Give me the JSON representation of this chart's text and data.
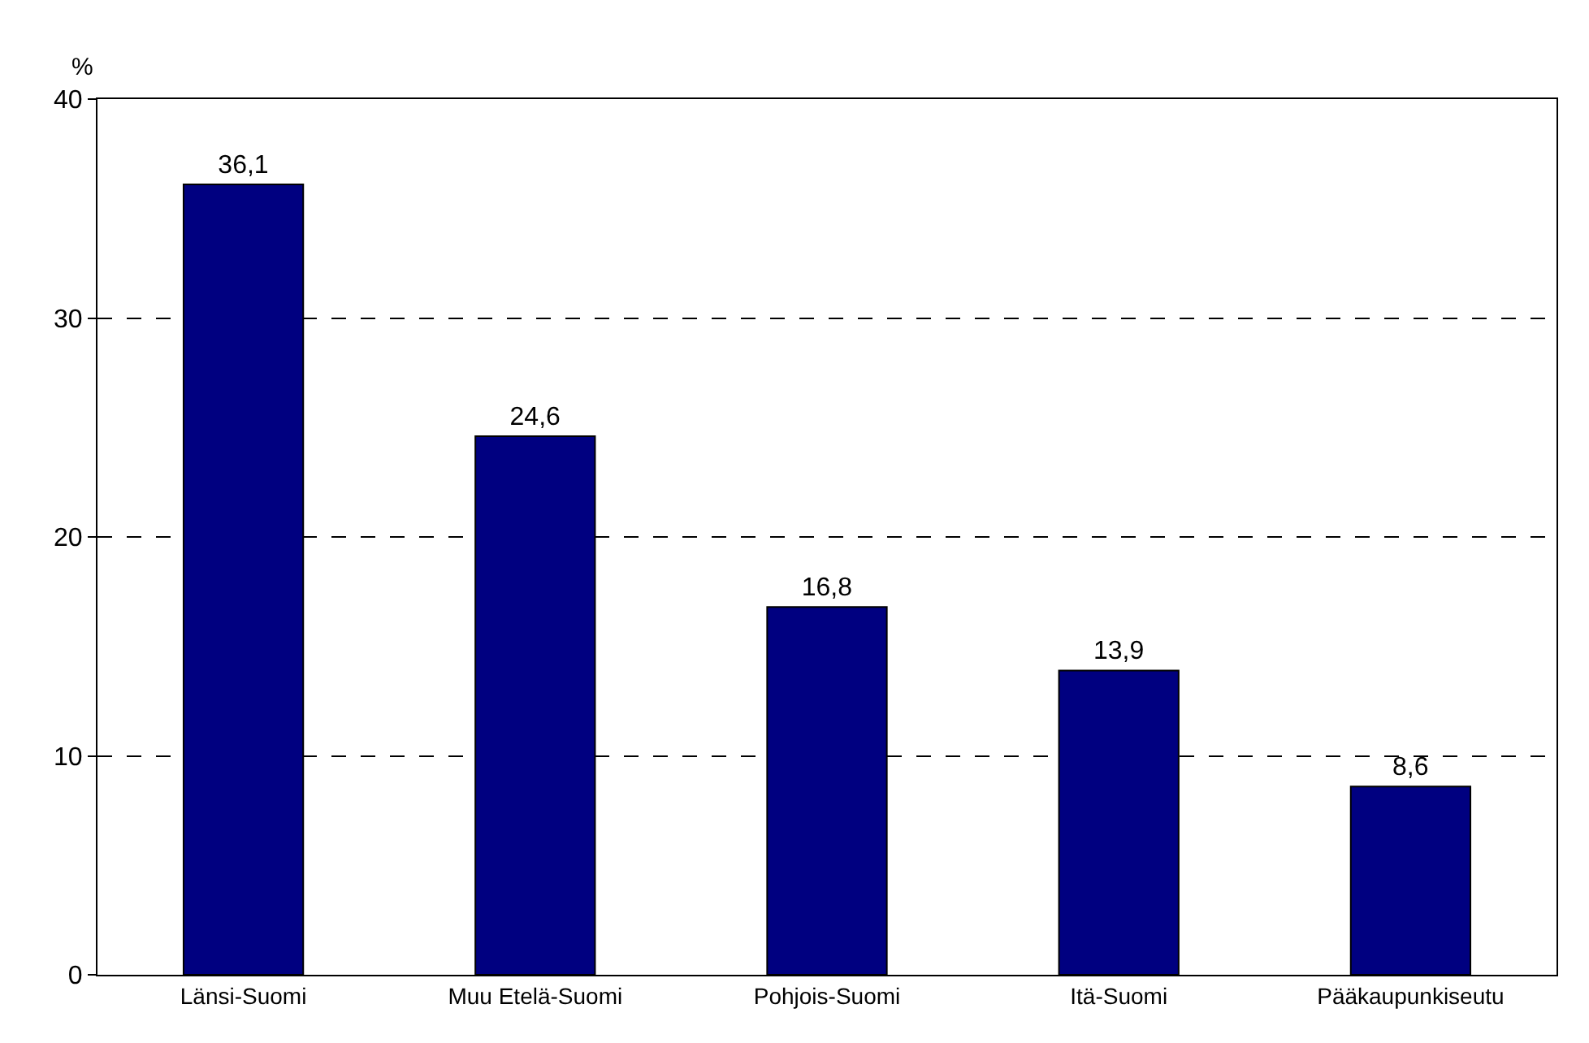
{
  "chart_data": {
    "type": "bar",
    "ylabel": "%",
    "categories": [
      "Länsi-Suomi",
      "Muu Etelä-Suomi",
      "Pohjois-Suomi",
      "Itä-Suomi",
      "Pääkaupunkiseutu"
    ],
    "values": [
      36.1,
      24.6,
      16.8,
      13.9,
      8.6
    ],
    "value_labels": [
      "36,1",
      "24,6",
      "16,8",
      "13,9",
      "8,6"
    ],
    "color": "#000080",
    "ylim": [
      0,
      40
    ],
    "yticks": [
      0,
      10,
      20,
      30,
      40
    ],
    "grid": "y",
    "legend": false
  }
}
